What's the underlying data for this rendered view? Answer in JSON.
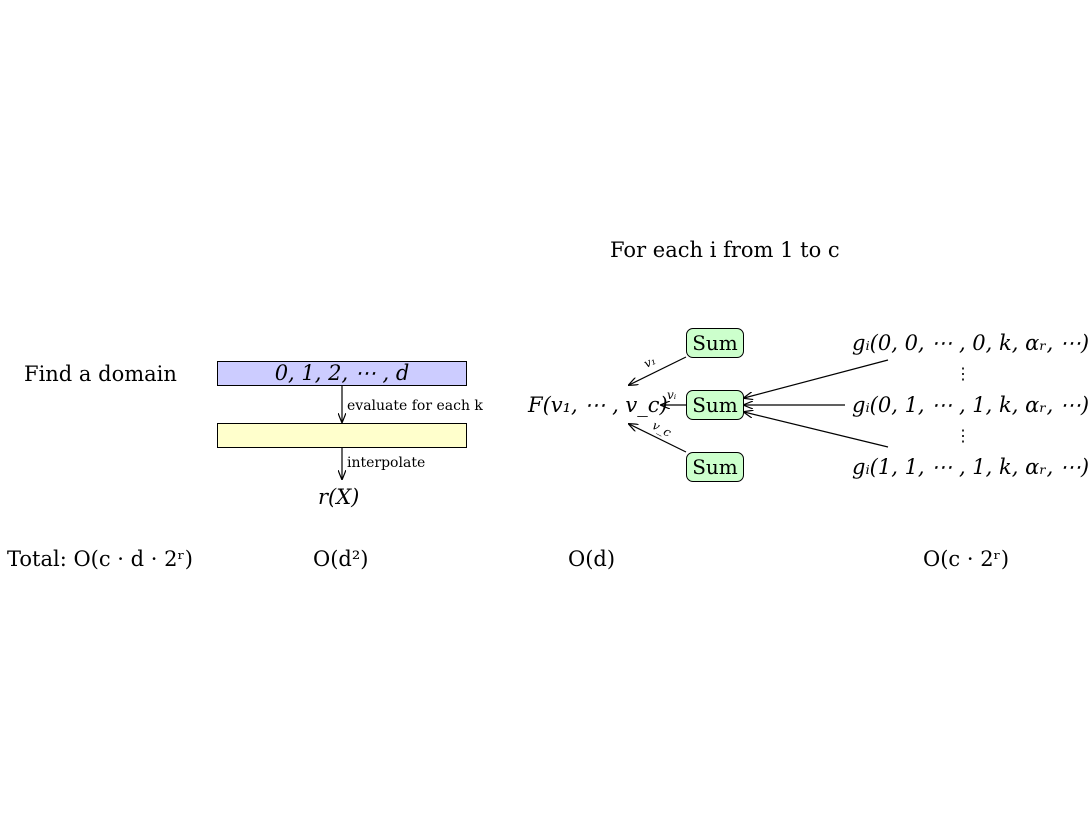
{
  "header": {
    "loop_label": "For each i from 1 to c"
  },
  "domain_step": {
    "label": "Find a domain",
    "domain_box": "0, 1, 2, ⋯ , d",
    "evaluate_label": "evaluate for each k",
    "interpolate_label": "interpolate",
    "result": "r(X)"
  },
  "sum_step": {
    "function_label": "F(v₁, ⋯ , v_c)",
    "sum_label": "Sum",
    "edge_labels": [
      "v₁",
      "vᵢ",
      "v_c"
    ]
  },
  "inputs": {
    "rows": [
      "gᵢ(0, 0, ⋯ , 0, k, αᵣ, ⋯)",
      "gᵢ(0, 1, ⋯ , 1, k, αᵣ, ⋯)",
      "gᵢ(1, 1, ⋯ , 1, k, αᵣ, ⋯)"
    ],
    "dots": "⋮"
  },
  "complexity": {
    "total": "Total: O(c · d · 2ʳ)",
    "interpolation": "O(d²)",
    "sum": "O(d)",
    "inputs": "O(c · 2ʳ)"
  }
}
